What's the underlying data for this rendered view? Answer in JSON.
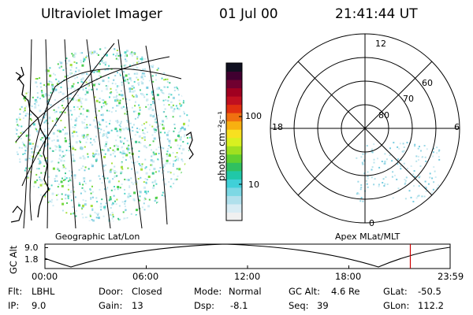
{
  "header": {
    "instrument": "Ultraviolet Imager",
    "date": "01 Jul 00",
    "time": "21:41:44 UT"
  },
  "colorbar": {
    "label": "photon cm⁻²s⁻¹",
    "ticks": [
      "100",
      "10"
    ],
    "colors": [
      "#f0f0f0",
      "#d8ecf4",
      "#b0e0ec",
      "#7cd8e4",
      "#40d0d8",
      "#20c8a8",
      "#30c060",
      "#60d030",
      "#a0e020",
      "#d8f020",
      "#f8e020",
      "#f8b010",
      "#f07010",
      "#e03010",
      "#c01020",
      "#a00020",
      "#700030",
      "#400030",
      "#101020"
    ]
  },
  "polar": {
    "labels": {
      "top": "12",
      "bottom": "0",
      "left": "18",
      "right": "6"
    },
    "rings": [
      "80",
      "70",
      "60"
    ]
  },
  "map_labels": {
    "left": "Geographic Lat/Lon",
    "right": "Apex MLat/MLT"
  },
  "altitude_plot": {
    "ylabel": "GC Alt",
    "yticks": [
      "9.0",
      "1.8"
    ],
    "xticks": [
      "00:00",
      "06:00",
      "12:00",
      "18:00",
      "23:59"
    ],
    "marker_color": "#cc0000"
  },
  "info": {
    "flt_label": "Flt:",
    "flt_value": "LBHL",
    "ip_label": "IP:",
    "ip_value": "9.0",
    "door_label": "Door:",
    "door_value": "Closed",
    "gain_label": "Gain:",
    "gain_value": "13",
    "mode_label": "Mode:",
    "mode_value": "Normal",
    "dsp_label": "Dsp:",
    "dsp_value": "-8.1",
    "gcalt_label": "GC Alt:",
    "gcalt_value": "4.6 Re",
    "seq_label": "Seq:",
    "seq_value": "39",
    "glat_label": "GLat:",
    "glat_value": "-50.5",
    "glon_label": "GLon:",
    "glon_value": "112.2"
  }
}
